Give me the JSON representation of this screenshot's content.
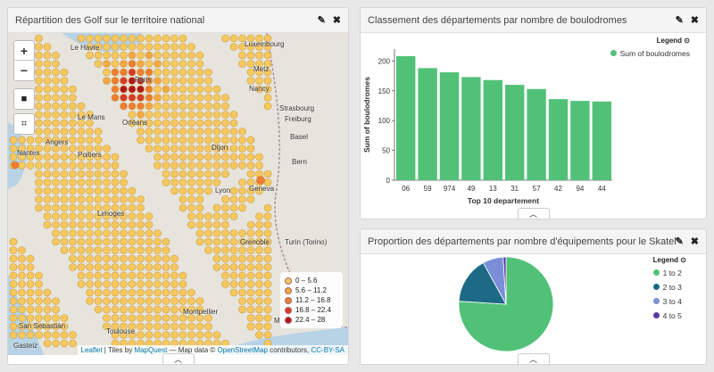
{
  "panels": {
    "map": {
      "title": "Répartition des Golf sur le territoire national",
      "zoom_in": "+",
      "zoom_out": "−",
      "legend": [
        {
          "label": "0 – 5.6",
          "color": "#f7c85e"
        },
        {
          "label": "5.6 – 11.2",
          "color": "#f5a742"
        },
        {
          "label": "11.2 – 16.8",
          "color": "#ef7d32"
        },
        {
          "label": "16.8 – 22.4",
          "color": "#d9392a"
        },
        {
          "label": "22.4 – 28",
          "color": "#b3141c"
        }
      ],
      "attribution": {
        "leaflet": "Leaflet",
        "tiles_prefix": "| Tiles by",
        "mapquest": "MapQuest",
        "middle": "— Map data ©",
        "osm": "OpenStreetMap",
        "contrib": "contributors,",
        "license": "CC-BY-SA"
      },
      "places": [
        "Le Havre",
        "Luxembourg",
        "Metz",
        "Paris",
        "Nancy",
        "Le Mans",
        "Orléans",
        "Strasbourg",
        "Angers",
        "Freiburg",
        "Nantes",
        "Dijon",
        "Basel",
        "Bern",
        "Poitiers",
        "Lyon",
        "Geneva",
        "Limoges",
        "Grenoble",
        "Turin (Torino)",
        "Montpellier",
        "Marseille",
        "San Sebastián",
        "Toulouse",
        "Gasteiz"
      ]
    },
    "bar": {
      "title": "Classement des départements par nombre de boulodromes",
      "legend_title": "Legend",
      "series_name": "Sum of boulodromes",
      "color": "#52c178"
    },
    "pie": {
      "title": "Proportion des départements par nombre d'équipements pour le Skateboard",
      "legend_title": "Legend"
    }
  },
  "chart_data": [
    {
      "type": "bar",
      "categories": [
        "06",
        "59",
        "974",
        "49",
        "13",
        "31",
        "57",
        "42",
        "94",
        "44"
      ],
      "series": [
        {
          "name": "Sum of boulodromes",
          "values": [
            208,
            188,
            181,
            173,
            168,
            160,
            153,
            136,
            133,
            132
          ]
        }
      ],
      "xlabel": "Top 10 departement",
      "ylabel": "Sum of boulodromes",
      "ylim": [
        0,
        220
      ],
      "yticks": [
        0,
        50,
        100,
        150,
        200
      ],
      "legend": "top-right"
    },
    {
      "type": "pie",
      "slices": [
        {
          "label": "1 to 2",
          "value": 76,
          "color": "#52c178"
        },
        {
          "label": "2 to 3",
          "value": 16,
          "color": "#1c6a85"
        },
        {
          "label": "3 to 4",
          "value": 7,
          "color": "#7b8fd9"
        },
        {
          "label": "4 to 5",
          "value": 1,
          "color": "#5b3aa6"
        }
      ],
      "legend": "right"
    }
  ]
}
